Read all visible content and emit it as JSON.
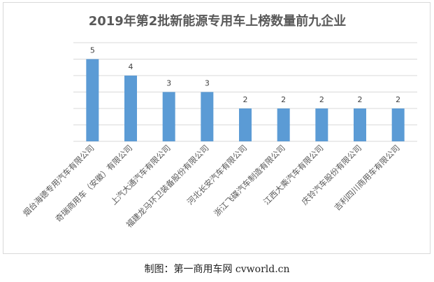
{
  "chart_data": {
    "type": "bar",
    "title": "2019年第2批新能源专用车上榜数量前九企业",
    "categories": [
      "烟台海德专用汽车有限公司",
      "奇瑞商用车（安徽）有限公司",
      "上汽大通汽车有限公司",
      "福建龙马环卫装备股份有限公司",
      "河北长安汽车有限公司",
      "浙江飞碟汽车制造有限公司",
      "江西大乘汽车有限公司",
      "庆铃汽车股份有限公司",
      "吉利四川商用车有限公司"
    ],
    "values": [
      5,
      4,
      3,
      3,
      2,
      2,
      2,
      2,
      2
    ],
    "ylim": [
      0,
      6
    ],
    "grid": true,
    "bar_color": "#5b9bd5",
    "grid_color": "#d9d9d9",
    "data_labels": true
  },
  "caption": "制图：第一商用车网 cvworld.cn"
}
